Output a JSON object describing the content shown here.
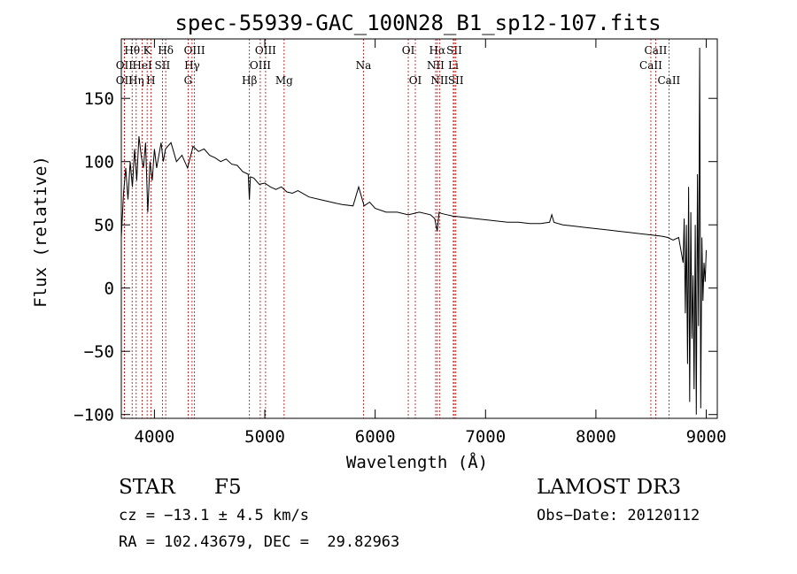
{
  "chart_data": {
    "type": "line",
    "title": "spec-55939-GAC_100N28_B1_sp12-107.fits",
    "xlabel": "Wavelength (Å)",
    "ylabel": "Flux (relative)",
    "xlim": [
      3700,
      9100
    ],
    "ylim": [
      -103,
      197
    ],
    "xticks": [
      4000,
      5000,
      6000,
      7000,
      8000,
      9000
    ],
    "yticks": [
      -100,
      -50,
      0,
      50,
      100,
      150
    ],
    "series": [
      {
        "name": "flux",
        "x": [
          3700,
          3720,
          3740,
          3760,
          3780,
          3800,
          3820,
          3840,
          3860,
          3880,
          3900,
          3920,
          3940,
          3960,
          3980,
          4000,
          4020,
          4040,
          4060,
          4080,
          4100,
          4150,
          4200,
          4250,
          4300,
          4350,
          4400,
          4450,
          4500,
          4550,
          4600,
          4650,
          4700,
          4750,
          4800,
          4850,
          4860,
          4870,
          4900,
          4950,
          5000,
          5050,
          5100,
          5150,
          5200,
          5250,
          5300,
          5400,
          5500,
          5600,
          5700,
          5800,
          5850,
          5900,
          5950,
          6000,
          6100,
          6200,
          6300,
          6400,
          6500,
          6540,
          6562,
          6580,
          6600,
          6650,
          6700,
          6800,
          6900,
          7000,
          7100,
          7200,
          7300,
          7400,
          7500,
          7580,
          7600,
          7620,
          7700,
          7800,
          7900,
          8000,
          8100,
          8200,
          8300,
          8400,
          8500,
          8600,
          8650,
          8700,
          8750,
          8770,
          8790,
          8800,
          8810,
          8820,
          8830,
          8840,
          8850,
          8860,
          8870,
          8880,
          8890,
          8900,
          8910,
          8920,
          8930,
          8940,
          8950,
          8960,
          8970,
          8980,
          8990,
          9000
        ],
        "y": [
          40,
          75,
          95,
          70,
          100,
          80,
          110,
          85,
          120,
          105,
          95,
          115,
          60,
          100,
          85,
          110,
          95,
          105,
          115,
          100,
          110,
          115,
          100,
          105,
          95,
          112,
          108,
          110,
          105,
          103,
          100,
          102,
          98,
          97,
          92,
          90,
          70,
          88,
          87,
          82,
          83,
          80,
          78,
          80,
          76,
          75,
          77,
          72,
          70,
          68,
          66,
          65,
          80,
          65,
          68,
          63,
          60,
          60,
          58,
          60,
          58,
          55,
          45,
          60,
          59,
          58,
          57,
          56,
          55,
          54,
          53,
          52,
          52,
          51,
          51,
          52,
          58,
          52,
          50,
          49,
          48,
          47,
          46,
          45,
          44,
          43,
          42,
          41,
          40,
          38,
          40,
          30,
          20,
          55,
          -20,
          50,
          -60,
          80,
          -90,
          60,
          -40,
          10,
          -80,
          50,
          -100,
          90,
          -30,
          190,
          -95,
          40,
          -10,
          20,
          5,
          30
        ]
      }
    ],
    "lines": [
      {
        "name": "Hθ",
        "wl": 3798,
        "row": 1
      },
      {
        "name": "OII",
        "wl": 3727,
        "row": 2
      },
      {
        "name": "OII",
        "wl": 3727,
        "row": 3
      },
      {
        "name": "K",
        "wl": 3934,
        "row": 1
      },
      {
        "name": "HeI",
        "wl": 3889,
        "row": 2
      },
      {
        "name": "Hη",
        "wl": 3835,
        "row": 3
      },
      {
        "name": "Hδ",
        "wl": 4102,
        "row": 1
      },
      {
        "name": "SII",
        "wl": 4072,
        "row": 2
      },
      {
        "name": "H",
        "wl": 3968,
        "row": 3
      },
      {
        "name": "OIII",
        "wl": 4363,
        "row": 1
      },
      {
        "name": "Hγ",
        "wl": 4341,
        "row": 2
      },
      {
        "name": "G",
        "wl": 4305,
        "row": 3
      },
      {
        "name": "OIII",
        "wl": 5007,
        "row": 1
      },
      {
        "name": "OIII",
        "wl": 4959,
        "row": 2
      },
      {
        "name": "Hβ",
        "wl": 4861,
        "row": 3
      },
      {
        "name": "Mg",
        "wl": 5175,
        "row": 3
      },
      {
        "name": "Na",
        "wl": 5894,
        "row": 2
      },
      {
        "name": "OI",
        "wl": 6300,
        "row": 1
      },
      {
        "name": "OI",
        "wl": 6364,
        "row": 3
      },
      {
        "name": "Hα",
        "wl": 6563,
        "row": 1
      },
      {
        "name": "NII",
        "wl": 6548,
        "row": 2
      },
      {
        "name": "NII",
        "wl": 6583,
        "row": 3
      },
      {
        "name": "SII",
        "wl": 6717,
        "row": 1
      },
      {
        "name": "Li",
        "wl": 6708,
        "row": 2
      },
      {
        "name": "SII",
        "wl": 6731,
        "row": 3
      },
      {
        "name": "CaII",
        "wl": 8542,
        "row": 1
      },
      {
        "name": "CaII",
        "wl": 8498,
        "row": 2
      },
      {
        "name": "CaII",
        "wl": 8662,
        "row": 3
      }
    ]
  },
  "info": {
    "class_type": "STAR",
    "subclass": "F5",
    "survey": "LAMOST DR3",
    "redshift": "cz = −13.1 ± 4.5 km/s",
    "obs_date": "Obs−Date: 20120112",
    "coords": "RA = 102.43679, DEC =  29.82963"
  }
}
